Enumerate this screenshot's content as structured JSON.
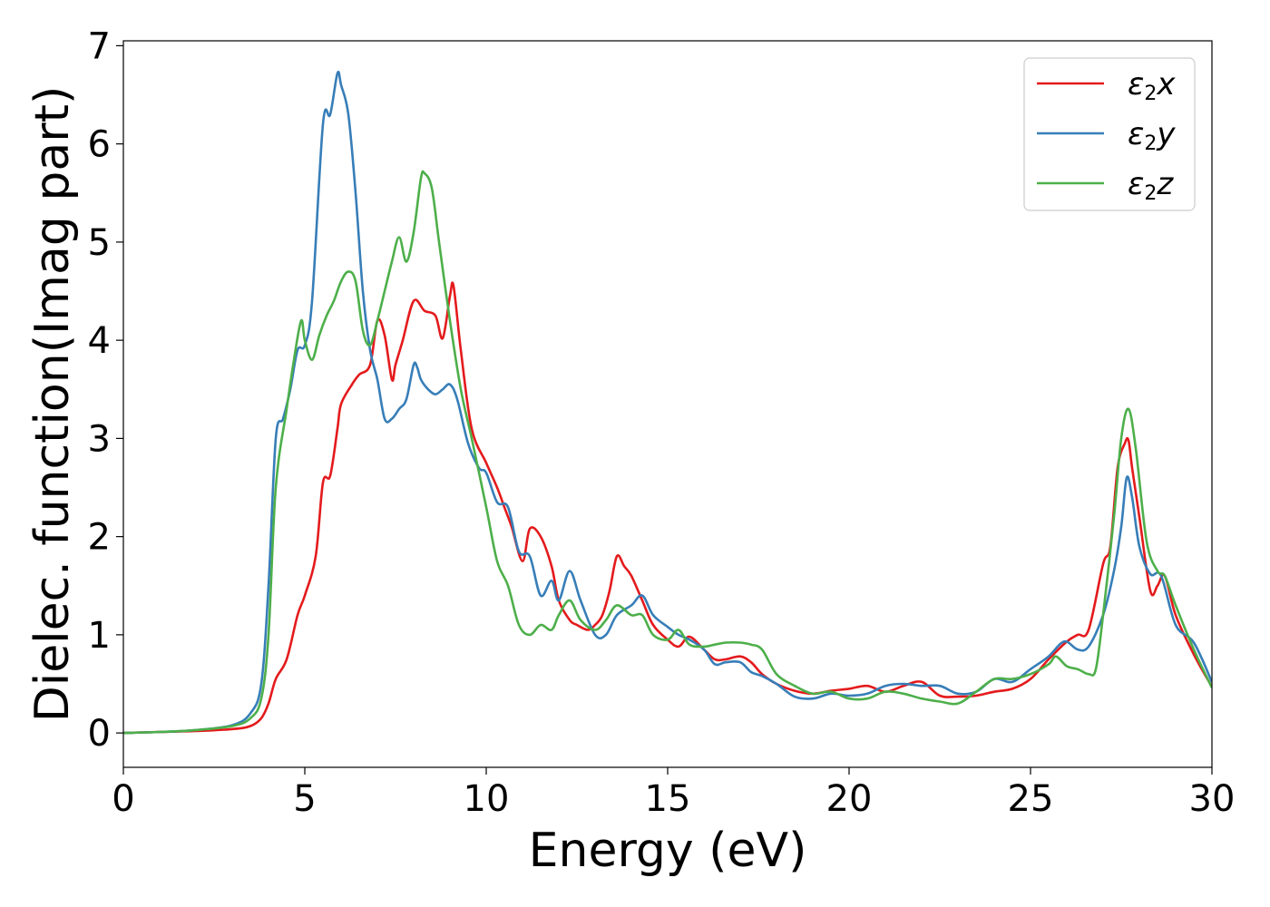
{
  "chart_data": {
    "type": "line",
    "xlabel": "Energy (eV)",
    "ylabel": "Dielec. function(Imag part)",
    "xlim": [
      0,
      30
    ],
    "ylim": [
      -0.35,
      7.05
    ],
    "xticks": [
      0,
      5,
      10,
      15,
      20,
      25,
      30
    ],
    "yticks": [
      0,
      1,
      2,
      3,
      4,
      5,
      6,
      7
    ],
    "xtick_labels": [
      "0",
      "5",
      "10",
      "15",
      "20",
      "25",
      "30"
    ],
    "ytick_labels": [
      "0",
      "1",
      "2",
      "3",
      "4",
      "5",
      "6",
      "7"
    ],
    "grid": false,
    "legend_position": "top-right",
    "series": [
      {
        "name": "ε2x",
        "legend": {
          "base": "ε",
          "sub": "2",
          "var": "x"
        },
        "color": "#e41a1c",
        "x": [
          0,
          1,
          2,
          3,
          3.5,
          3.8,
          4.0,
          4.2,
          4.5,
          4.8,
          5.0,
          5.3,
          5.5,
          5.7,
          5.9,
          6.0,
          6.3,
          6.5,
          6.8,
          7.0,
          7.2,
          7.4,
          7.5,
          7.7,
          8.0,
          8.3,
          8.6,
          8.8,
          9.0,
          9.1,
          9.3,
          9.6,
          10.0,
          10.3,
          10.5,
          10.7,
          11.0,
          11.2,
          11.5,
          11.8,
          12.0,
          12.3,
          12.5,
          12.8,
          13.0,
          13.2,
          13.4,
          13.6,
          13.8,
          14.0,
          14.3,
          14.6,
          15.0,
          15.3,
          15.6,
          16.0,
          16.3,
          16.6,
          17.0,
          17.3,
          17.6,
          18.0,
          18.5,
          19.0,
          19.5,
          20.0,
          20.5,
          21.0,
          21.5,
          22.0,
          22.5,
          23.0,
          23.5,
          24.0,
          24.5,
          25.0,
          25.5,
          26.0,
          26.3,
          26.6,
          27.0,
          27.2,
          27.4,
          27.6,
          27.7,
          27.8,
          28.0,
          28.3,
          28.5,
          28.7,
          29.0,
          29.5,
          30.0
        ],
        "y": [
          0,
          0.01,
          0.02,
          0.04,
          0.07,
          0.15,
          0.3,
          0.55,
          0.75,
          1.2,
          1.4,
          1.8,
          2.55,
          2.62,
          3.1,
          3.35,
          3.55,
          3.65,
          3.75,
          4.2,
          4.05,
          3.6,
          3.75,
          4.0,
          4.4,
          4.3,
          4.25,
          4.02,
          4.45,
          4.55,
          3.9,
          3.1,
          2.75,
          2.5,
          2.3,
          2.1,
          1.75,
          2.08,
          2.0,
          1.7,
          1.35,
          1.15,
          1.1,
          1.05,
          1.1,
          1.2,
          1.45,
          1.8,
          1.7,
          1.6,
          1.35,
          1.1,
          0.95,
          0.88,
          0.98,
          0.85,
          0.75,
          0.75,
          0.78,
          0.72,
          0.6,
          0.5,
          0.43,
          0.4,
          0.43,
          0.45,
          0.48,
          0.42,
          0.48,
          0.52,
          0.38,
          0.37,
          0.38,
          0.42,
          0.45,
          0.55,
          0.75,
          0.93,
          1.0,
          1.05,
          1.72,
          1.9,
          2.7,
          2.95,
          2.98,
          2.7,
          2.2,
          1.45,
          1.5,
          1.6,
          1.2,
          0.8,
          0.47
        ]
      },
      {
        "name": "ε2y",
        "legend": {
          "base": "ε",
          "sub": "2",
          "var": "y"
        },
        "color": "#377eb8",
        "x": [
          0,
          1,
          2,
          3,
          3.5,
          3.8,
          4.0,
          4.2,
          4.4,
          4.6,
          4.8,
          5.0,
          5.2,
          5.5,
          5.7,
          5.9,
          6.0,
          6.2,
          6.4,
          6.6,
          6.8,
          7.0,
          7.2,
          7.4,
          7.6,
          7.8,
          8.0,
          8.1,
          8.2,
          8.4,
          8.6,
          8.8,
          9.0,
          9.2,
          9.5,
          9.8,
          10.0,
          10.3,
          10.6,
          10.9,
          11.2,
          11.5,
          11.8,
          12.0,
          12.3,
          12.6,
          13.0,
          13.3,
          13.6,
          14.0,
          14.3,
          14.6,
          15.0,
          15.3,
          15.6,
          16.0,
          16.3,
          16.6,
          17.0,
          17.3,
          17.6,
          18.0,
          18.5,
          19.0,
          19.5,
          20.0,
          20.5,
          21.0,
          21.5,
          22.0,
          22.5,
          23.0,
          23.5,
          24.0,
          24.5,
          25.0,
          25.5,
          25.8,
          26.0,
          26.3,
          26.6,
          27.0,
          27.3,
          27.5,
          27.65,
          27.8,
          28.0,
          28.3,
          28.6,
          29.0,
          29.5,
          30.0
        ],
        "y": [
          0,
          0.01,
          0.03,
          0.08,
          0.2,
          0.5,
          1.5,
          3.0,
          3.2,
          3.5,
          3.9,
          3.95,
          4.4,
          6.2,
          6.3,
          6.72,
          6.6,
          6.3,
          5.5,
          4.5,
          3.9,
          3.6,
          3.2,
          3.2,
          3.3,
          3.4,
          3.75,
          3.72,
          3.6,
          3.5,
          3.45,
          3.5,
          3.55,
          3.4,
          2.95,
          2.7,
          2.65,
          2.35,
          2.3,
          1.85,
          1.8,
          1.4,
          1.55,
          1.35,
          1.65,
          1.35,
          1.0,
          1.0,
          1.2,
          1.3,
          1.4,
          1.2,
          1.08,
          1.0,
          0.95,
          0.85,
          0.7,
          0.72,
          0.72,
          0.62,
          0.58,
          0.5,
          0.37,
          0.35,
          0.4,
          0.38,
          0.4,
          0.48,
          0.5,
          0.48,
          0.48,
          0.4,
          0.42,
          0.55,
          0.52,
          0.65,
          0.78,
          0.9,
          0.93,
          0.85,
          0.88,
          1.2,
          1.65,
          2.1,
          2.6,
          2.4,
          1.9,
          1.62,
          1.6,
          1.1,
          0.92,
          0.52
        ]
      },
      {
        "name": "ε2z",
        "legend": {
          "base": "ε",
          "sub": "2",
          "var": "z"
        },
        "color": "#4daf4a",
        "x": [
          0,
          1,
          2,
          3,
          3.5,
          3.8,
          4.0,
          4.2,
          4.5,
          4.7,
          4.9,
          5.0,
          5.2,
          5.4,
          5.6,
          5.8,
          6.0,
          6.2,
          6.4,
          6.6,
          6.8,
          7.0,
          7.2,
          7.4,
          7.6,
          7.8,
          8.0,
          8.2,
          8.3,
          8.5,
          8.7,
          9.0,
          9.3,
          9.6,
          10.0,
          10.3,
          10.6,
          10.9,
          11.2,
          11.5,
          11.8,
          12.0,
          12.3,
          12.6,
          13.0,
          13.3,
          13.6,
          14.0,
          14.3,
          14.6,
          15.0,
          15.3,
          15.6,
          16.0,
          16.3,
          16.6,
          17.0,
          17.3,
          17.6,
          18.0,
          18.5,
          19.0,
          19.5,
          20.0,
          20.5,
          21.0,
          21.5,
          22.0,
          22.5,
          23.0,
          23.5,
          24.0,
          24.5,
          25.0,
          25.5,
          25.7,
          26.0,
          26.3,
          26.6,
          26.8,
          27.0,
          27.3,
          27.5,
          27.7,
          27.9,
          28.2,
          28.5,
          28.7,
          29.0,
          29.5,
          30.0
        ],
        "y": [
          0,
          0.01,
          0.03,
          0.07,
          0.15,
          0.35,
          1.0,
          2.5,
          3.3,
          3.8,
          4.2,
          4.0,
          3.8,
          4.05,
          4.25,
          4.4,
          4.6,
          4.7,
          4.6,
          4.1,
          3.95,
          4.2,
          4.5,
          4.8,
          5.05,
          4.8,
          5.1,
          5.65,
          5.7,
          5.55,
          5.0,
          4.2,
          3.5,
          3.0,
          2.3,
          1.75,
          1.5,
          1.1,
          1.0,
          1.1,
          1.05,
          1.2,
          1.35,
          1.15,
          1.05,
          1.15,
          1.3,
          1.2,
          1.2,
          1.0,
          0.95,
          1.05,
          0.9,
          0.88,
          0.9,
          0.92,
          0.92,
          0.9,
          0.85,
          0.6,
          0.48,
          0.4,
          0.42,
          0.35,
          0.35,
          0.42,
          0.4,
          0.35,
          0.32,
          0.3,
          0.42,
          0.55,
          0.55,
          0.6,
          0.7,
          0.78,
          0.68,
          0.65,
          0.6,
          0.65,
          1.2,
          2.2,
          3.0,
          3.3,
          2.9,
          1.95,
          1.65,
          1.6,
          1.3,
          0.85,
          0.46
        ]
      }
    ]
  }
}
